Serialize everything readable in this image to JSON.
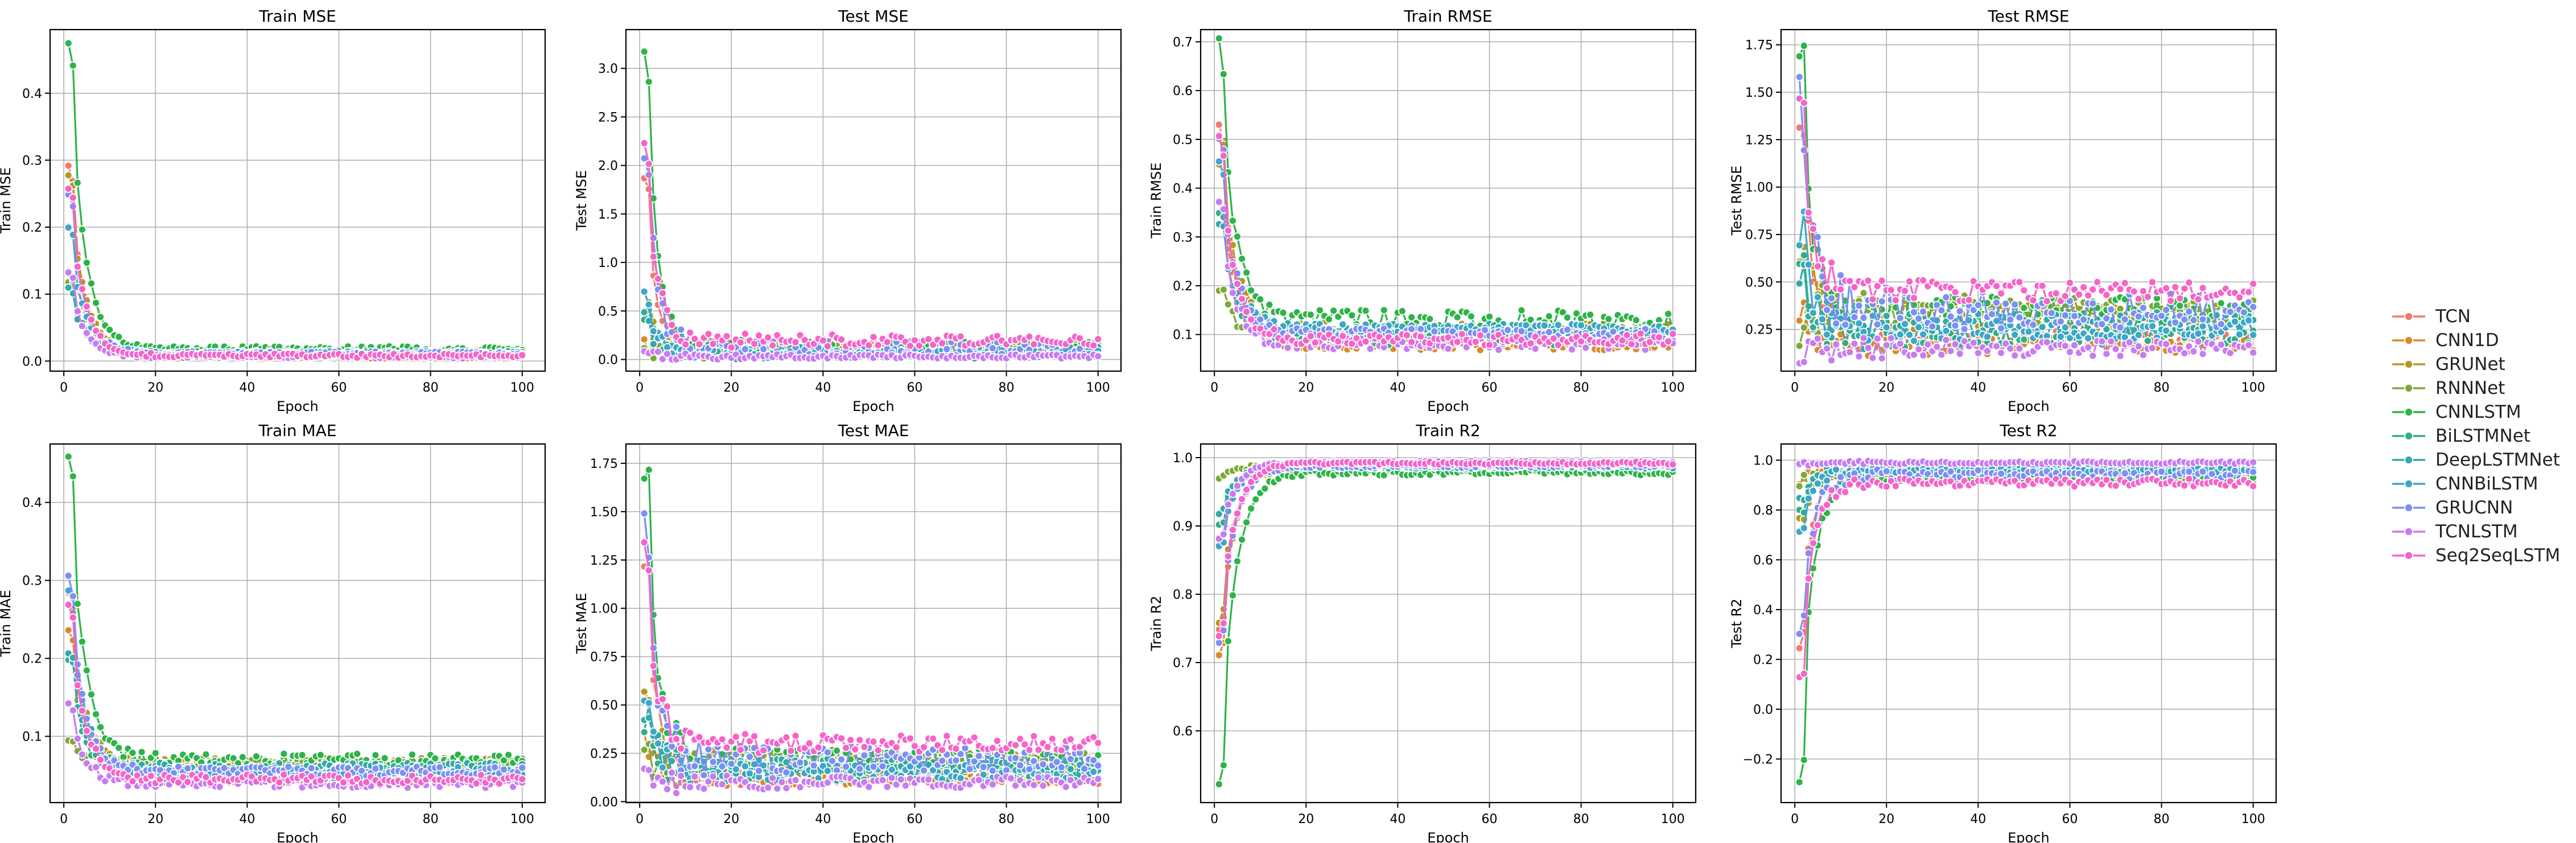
{
  "chart_data": [
    {
      "type": "line",
      "title": "Train MSE",
      "xlabel": "Epoch",
      "ylabel": "Train MSE",
      "xlim": [
        -3,
        105
      ],
      "ylim": [
        -0.015,
        0.495
      ],
      "xticks": [
        0,
        20,
        40,
        60,
        80,
        100
      ],
      "yticks": [
        0.0,
        0.1,
        0.2,
        0.3,
        0.4
      ],
      "ytick_labels": [
        "0.0",
        "0.1",
        "0.2",
        "0.3",
        "0.4"
      ],
      "grid": true,
      "metric": "mse",
      "train": true,
      "start": [
        0.29,
        0.2,
        0.28,
        0.12,
        0.475,
        0.13,
        0.11,
        0.2,
        0.25,
        0.13,
        0.26
      ],
      "end": [
        0.008,
        0.006,
        0.012,
        0.01,
        0.018,
        0.009,
        0.012,
        0.012,
        0.011,
        0.007,
        0.008
      ],
      "amp": [
        0.002,
        0.002,
        0.003,
        0.003,
        0.004,
        0.003,
        0.003,
        0.003,
        0.003,
        0.003,
        0.003
      ]
    },
    {
      "type": "line",
      "title": "Test MSE",
      "xlabel": "Epoch",
      "ylabel": "Test MSE",
      "xlim": [
        -3,
        105
      ],
      "ylim": [
        -0.12,
        3.4
      ],
      "xticks": [
        0,
        20,
        40,
        60,
        80,
        100
      ],
      "yticks": [
        0.0,
        0.5,
        1.0,
        1.5,
        2.0,
        2.5,
        3.0
      ],
      "ytick_labels": [
        "0.0",
        "0.5",
        "1.0",
        "1.5",
        "2.0",
        "2.5",
        "3.0"
      ],
      "grid": true,
      "metric": "mse",
      "train": false,
      "start": [
        1.9,
        0.15,
        0.6,
        0.1,
        3.2,
        0.5,
        0.45,
        0.7,
        2.2,
        0.05,
        2.15
      ],
      "end": [
        0.04,
        0.12,
        0.1,
        0.12,
        0.12,
        0.05,
        0.08,
        0.06,
        0.12,
        0.03,
        0.2
      ],
      "amp": [
        0.03,
        0.06,
        0.06,
        0.06,
        0.06,
        0.04,
        0.05,
        0.04,
        0.08,
        0.02,
        0.06
      ]
    },
    {
      "type": "line",
      "title": "Train RMSE",
      "xlabel": "Epoch",
      "ylabel": "Train RMSE",
      "xlim": [
        -3,
        105
      ],
      "ylim": [
        0.025,
        0.725
      ],
      "xticks": [
        0,
        20,
        40,
        60,
        80,
        100
      ],
      "yticks": [
        0.1,
        0.2,
        0.3,
        0.4,
        0.5,
        0.6,
        0.7
      ],
      "ytick_labels": [
        "0.1",
        "0.2",
        "0.3",
        "0.4",
        "0.5",
        "0.6",
        "0.7"
      ],
      "grid": true,
      "metric": "rmse",
      "train": true,
      "start": [
        0.54,
        0.45,
        0.52,
        0.2,
        0.69,
        0.36,
        0.33,
        0.46,
        0.5,
        0.37,
        0.5
      ],
      "end": [
        0.09,
        0.08,
        0.11,
        0.1,
        0.13,
        0.09,
        0.11,
        0.11,
        0.1,
        0.08,
        0.09
      ],
      "amp": [
        0.012,
        0.012,
        0.015,
        0.015,
        0.02,
        0.012,
        0.012,
        0.012,
        0.012,
        0.012,
        0.012
      ]
    },
    {
      "type": "line",
      "title": "Test RMSE",
      "xlabel": "Epoch",
      "ylabel": "Test RMSE",
      "xlim": [
        -3,
        105
      ],
      "ylim": [
        0.03,
        1.83
      ],
      "xticks": [
        0,
        20,
        40,
        60,
        80,
        100
      ],
      "yticks": [
        0.25,
        0.5,
        0.75,
        1.0,
        1.25,
        1.5,
        1.75
      ],
      "ytick_labels": [
        "0.25",
        "0.50",
        "0.75",
        "1.00",
        "1.25",
        "1.50",
        "1.75"
      ],
      "grid": true,
      "metric": "rmse",
      "train": false,
      "start": [
        1.38,
        0.35,
        0.75,
        0.3,
        1.79,
        0.65,
        0.62,
        0.8,
        1.45,
        0.12,
        1.45
      ],
      "end": [
        0.2,
        0.16,
        0.32,
        0.35,
        0.35,
        0.22,
        0.28,
        0.25,
        0.35,
        0.15,
        0.45
      ],
      "amp": [
        0.04,
        0.04,
        0.07,
        0.07,
        0.07,
        0.05,
        0.06,
        0.05,
        0.09,
        0.04,
        0.05
      ]
    },
    {
      "type": "line",
      "title": "Train MAE",
      "xlabel": "Epoch",
      "ylabel": "Train MAE",
      "xlim": [
        -3,
        105
      ],
      "ylim": [
        0.015,
        0.475
      ],
      "xticks": [
        0,
        20,
        40,
        60,
        80,
        100
      ],
      "yticks": [
        0.1,
        0.2,
        0.3,
        0.4
      ],
      "ytick_labels": [
        "0.1",
        "0.2",
        "0.3",
        "0.4"
      ],
      "grid": true,
      "metric": "mae",
      "train": true,
      "start": [
        0.28,
        0.24,
        0.27,
        0.09,
        0.455,
        0.2,
        0.21,
        0.29,
        0.3,
        0.14,
        0.27
      ],
      "end": [
        0.05,
        0.045,
        0.065,
        0.065,
        0.07,
        0.05,
        0.06,
        0.055,
        0.055,
        0.04,
        0.045
      ],
      "amp": [
        0.005,
        0.005,
        0.007,
        0.007,
        0.008,
        0.006,
        0.006,
        0.006,
        0.006,
        0.006,
        0.006
      ]
    },
    {
      "type": "line",
      "title": "Test MAE",
      "xlabel": "Epoch",
      "ylabel": "Test MAE",
      "xlim": [
        -3,
        105
      ],
      "ylim": [
        -0.005,
        1.85
      ],
      "xticks": [
        0,
        20,
        40,
        60,
        80,
        100
      ],
      "yticks": [
        0.0,
        0.25,
        0.5,
        0.75,
        1.0,
        1.25,
        1.5,
        1.75
      ],
      "ytick_labels": [
        "0.00",
        "0.25",
        "0.50",
        "0.75",
        "1.00",
        "1.25",
        "1.50",
        "1.75"
      ],
      "grid": true,
      "metric": "mae",
      "train": false,
      "start": [
        1.25,
        0.3,
        0.6,
        0.25,
        1.76,
        0.45,
        0.45,
        0.55,
        1.35,
        0.1,
        1.25
      ],
      "end": [
        0.12,
        0.12,
        0.2,
        0.22,
        0.22,
        0.15,
        0.18,
        0.15,
        0.22,
        0.1,
        0.3
      ],
      "amp": [
        0.03,
        0.03,
        0.05,
        0.05,
        0.05,
        0.04,
        0.04,
        0.04,
        0.06,
        0.03,
        0.04
      ]
    },
    {
      "type": "line",
      "title": "Train R2",
      "xlabel": "Epoch",
      "ylabel": "Train R2",
      "xlim": [
        -3,
        105
      ],
      "ylim": [
        0.495,
        1.02
      ],
      "xticks": [
        0,
        20,
        40,
        60,
        80,
        100
      ],
      "yticks": [
        0.6,
        0.7,
        0.8,
        0.9,
        1.0
      ],
      "ytick_labels": [
        "0.6",
        "0.7",
        "0.8",
        "0.9",
        "1.0"
      ],
      "grid": true,
      "metric": "r2",
      "train": true,
      "start": [
        0.75,
        0.71,
        0.76,
        0.97,
        0.52,
        0.9,
        0.92,
        0.87,
        0.73,
        0.88,
        0.74
      ],
      "end": [
        0.99,
        0.992,
        0.985,
        0.988,
        0.978,
        0.99,
        0.987,
        0.987,
        0.988,
        0.993,
        0.992
      ],
      "amp": [
        0.002,
        0.002,
        0.003,
        0.003,
        0.004,
        0.002,
        0.003,
        0.003,
        0.003,
        0.002,
        0.002
      ]
    },
    {
      "type": "line",
      "title": "Test R2",
      "xlabel": "Epoch",
      "ylabel": "Test R2",
      "xlim": [
        -3,
        105
      ],
      "ylim": [
        -0.375,
        1.065
      ],
      "xticks": [
        0,
        20,
        40,
        60,
        80,
        100
      ],
      "yticks": [
        -0.2,
        0.0,
        0.2,
        0.4,
        0.6,
        0.8,
        1.0
      ],
      "ytick_labels": [
        "−0.2",
        "0.0",
        "0.2",
        "0.4",
        "0.6",
        "0.8",
        "1.0"
      ],
      "grid": true,
      "metric": "r2",
      "train": false,
      "start": [
        0.25,
        0.9,
        0.75,
        0.92,
        -0.3,
        0.8,
        0.82,
        0.7,
        0.3,
        0.98,
        0.1
      ],
      "end": [
        0.985,
        0.97,
        0.95,
        0.93,
        0.93,
        0.97,
        0.96,
        0.96,
        0.94,
        0.99,
        0.91
      ],
      "amp": [
        0.006,
        0.01,
        0.015,
        0.015,
        0.015,
        0.01,
        0.012,
        0.01,
        0.018,
        0.005,
        0.015
      ]
    }
  ],
  "legend": {
    "placement": "right",
    "items": [
      {
        "name": "TCN",
        "color": "#f7766d"
      },
      {
        "name": "CNN1D",
        "color": "#d98a2d"
      },
      {
        "name": "GRUNet",
        "color": "#b29a1f"
      },
      {
        "name": "RNNNet",
        "color": "#80a838"
      },
      {
        "name": "CNNLSTM",
        "color": "#2eb34a"
      },
      {
        "name": "BiLSTMNet",
        "color": "#33ad8c"
      },
      {
        "name": "DeepLSTMNet",
        "color": "#33aaa6"
      },
      {
        "name": "CNNBiLSTM",
        "color": "#3da6c9"
      },
      {
        "name": "GRUCNN",
        "color": "#7c8ff5"
      },
      {
        "name": "TCNLSTM",
        "color": "#c77cf2"
      },
      {
        "name": "Seq2SeqLSTM",
        "color": "#f564c9"
      }
    ]
  }
}
